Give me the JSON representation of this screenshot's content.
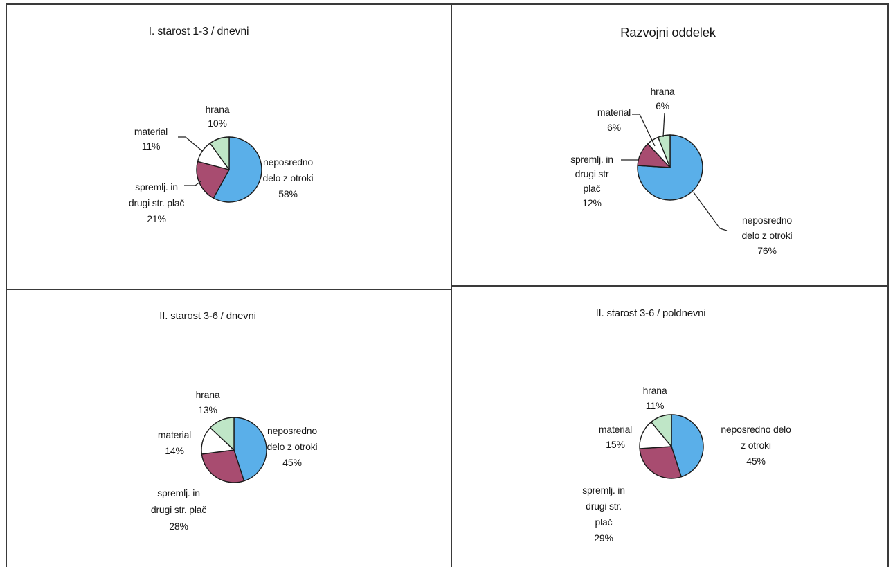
{
  "chart_data": [
    {
      "type": "pie",
      "title": "I. starost 1-3 / dnevni",
      "slices": [
        {
          "label": "neposredno\ndelo z otroki",
          "value": 58,
          "color": "#5aafe9"
        },
        {
          "label": "spremlj. in\ndrugi str. plač",
          "value": 21,
          "color": "#a84c70"
        },
        {
          "label": "material",
          "value": 11,
          "color": "#ffffff"
        },
        {
          "label": "hrana",
          "value": 10,
          "color": "#bfe6c7"
        }
      ]
    },
    {
      "type": "pie",
      "title": "Razvojni oddelek",
      "slices": [
        {
          "label": "neposredno\ndelo z otroki",
          "value": 76,
          "color": "#5aafe9"
        },
        {
          "label": "spremlj. in\ndrugi str\nplač",
          "value": 12,
          "color": "#a84c70"
        },
        {
          "label": "material",
          "value": 6,
          "color": "#ffffff"
        },
        {
          "label": "hrana",
          "value": 6,
          "color": "#bfe6c7"
        }
      ]
    },
    {
      "type": "pie",
      "title": "II. starost 3-6 / dnevni",
      "slices": [
        {
          "label": "neposredno\ndelo z otroki",
          "value": 45,
          "color": "#5aafe9"
        },
        {
          "label": "spremlj. in\ndrugi str. plač",
          "value": 28,
          "color": "#a84c70"
        },
        {
          "label": "material",
          "value": 14,
          "color": "#ffffff"
        },
        {
          "label": "hrana",
          "value": 13,
          "color": "#bfe6c7"
        }
      ]
    },
    {
      "type": "pie",
      "title": "II. starost 3-6 / poldnevni",
      "slices": [
        {
          "label": "neposredno delo\nz otroki",
          "value": 45,
          "color": "#5aafe9"
        },
        {
          "label": "spremlj. in\ndrugi str.\nplač",
          "value": 29,
          "color": "#a84c70"
        },
        {
          "label": "material",
          "value": 15,
          "color": "#ffffff"
        },
        {
          "label": "hrana",
          "value": 11,
          "color": "#bfe6c7"
        }
      ]
    }
  ]
}
